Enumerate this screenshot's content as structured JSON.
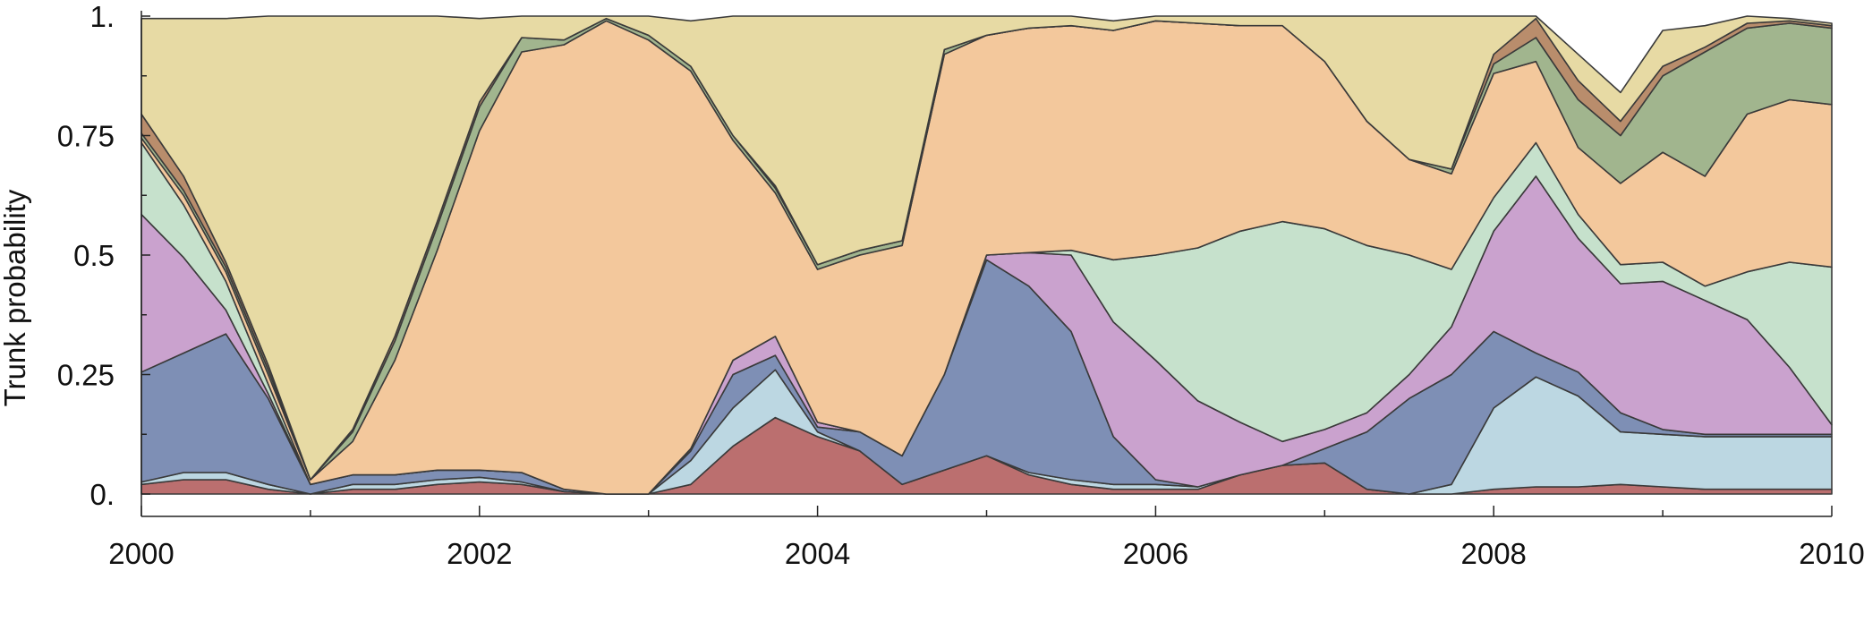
{
  "chart_data": {
    "type": "area",
    "stacked": true,
    "normalized": true,
    "title": "",
    "xlabel": "",
    "ylabel": "Trunk probability",
    "xlim": [
      2000,
      2010
    ],
    "ylim": [
      0,
      1
    ],
    "x_ticks": [
      2000,
      2002,
      2004,
      2006,
      2008,
      2010
    ],
    "x_tick_labels": [
      "2000",
      "2002",
      "2004",
      "2006",
      "2008",
      "2010"
    ],
    "y_ticks": [
      0,
      0.25,
      0.5,
      0.75,
      1
    ],
    "y_tick_labels": [
      "0.",
      "0.25",
      "0.5",
      "0.75",
      "1."
    ],
    "grid": false,
    "legend": "none",
    "x": [
      2000.0,
      2000.25,
      2000.5,
      2000.75,
      2001.0,
      2001.25,
      2001.5,
      2001.75,
      2002.0,
      2002.25,
      2002.5,
      2002.75,
      2003.0,
      2003.25,
      2003.5,
      2003.75,
      2004.0,
      2004.25,
      2004.5,
      2004.75,
      2005.0,
      2005.25,
      2005.5,
      2005.75,
      2006.0,
      2006.25,
      2006.5,
      2006.75,
      2007.0,
      2007.25,
      2007.5,
      2007.75,
      2008.0,
      2008.25,
      2008.5,
      2008.75,
      2009.0,
      2009.25,
      2009.5,
      2009.75,
      2010.0
    ],
    "series": [
      {
        "color": "#bb6f6f",
        "values": [
          0.02,
          0.03,
          0.03,
          0.01,
          0.0,
          0.01,
          0.01,
          0.02,
          0.025,
          0.02,
          0.005,
          0.0,
          0.0,
          0.02,
          0.1,
          0.16,
          0.12,
          0.09,
          0.02,
          0.05,
          0.08,
          0.04,
          0.02,
          0.01,
          0.01,
          0.01,
          0.04,
          0.06,
          0.065,
          0.01,
          0.0,
          0.0,
          0.01,
          0.015,
          0.015,
          0.02,
          0.015,
          0.01,
          0.01,
          0.01,
          0.01
        ]
      },
      {
        "color": "#bcd7e2",
        "values": [
          0.005,
          0.015,
          0.015,
          0.01,
          0.0,
          0.01,
          0.01,
          0.01,
          0.01,
          0.005,
          0.0,
          0.0,
          0.0,
          0.05,
          0.08,
          0.1,
          0.01,
          0.0,
          0.0,
          0.0,
          0.0,
          0.005,
          0.01,
          0.01,
          0.01,
          0.005,
          0.0,
          0.0,
          0.0,
          0.0,
          0.0,
          0.02,
          0.17,
          0.23,
          0.19,
          0.11,
          0.11,
          0.11,
          0.11,
          0.11,
          0.11
        ]
      },
      {
        "color": "#7e8fb5",
        "values": [
          0.23,
          0.25,
          0.29,
          0.18,
          0.02,
          0.02,
          0.02,
          0.02,
          0.015,
          0.02,
          0.005,
          0.0,
          0.0,
          0.02,
          0.07,
          0.03,
          0.01,
          0.04,
          0.06,
          0.2,
          0.41,
          0.39,
          0.31,
          0.1,
          0.01,
          0.0,
          0.0,
          0.0,
          0.03,
          0.12,
          0.2,
          0.23,
          0.16,
          0.05,
          0.05,
          0.04,
          0.01,
          0.005,
          0.005,
          0.005,
          0.005
        ]
      },
      {
        "color": "#caa2ce",
        "values": [
          0.33,
          0.2,
          0.05,
          0.01,
          0.0,
          0.0,
          0.0,
          0.0,
          0.0,
          0.0,
          0.0,
          0.0,
          0.0,
          0.005,
          0.03,
          0.04,
          0.01,
          0.0,
          0.0,
          0.0,
          0.01,
          0.07,
          0.16,
          0.24,
          0.25,
          0.18,
          0.11,
          0.05,
          0.04,
          0.04,
          0.05,
          0.1,
          0.21,
          0.37,
          0.28,
          0.27,
          0.31,
          0.28,
          0.24,
          0.14,
          0.02
        ]
      },
      {
        "color": "#c6e1cc",
        "values": [
          0.15,
          0.11,
          0.06,
          0.02,
          0.0,
          0.0,
          0.0,
          0.0,
          0.0,
          0.0,
          0.0,
          0.0,
          0.0,
          0.0,
          0.0,
          0.0,
          0.0,
          0.0,
          0.0,
          0.0,
          0.0,
          0.0,
          0.01,
          0.13,
          0.22,
          0.32,
          0.4,
          0.46,
          0.42,
          0.35,
          0.25,
          0.12,
          0.07,
          0.07,
          0.05,
          0.04,
          0.04,
          0.03,
          0.1,
          0.22,
          0.33
        ]
      },
      {
        "color": "#f3c89c",
        "values": [
          0.01,
          0.02,
          0.02,
          0.02,
          0.01,
          0.07,
          0.24,
          0.46,
          0.71,
          0.88,
          0.93,
          0.99,
          0.95,
          0.79,
          0.46,
          0.3,
          0.32,
          0.37,
          0.44,
          0.67,
          0.46,
          0.47,
          0.47,
          0.48,
          0.49,
          0.47,
          0.43,
          0.41,
          0.35,
          0.26,
          0.2,
          0.2,
          0.26,
          0.17,
          0.14,
          0.17,
          0.23,
          0.23,
          0.33,
          0.34,
          0.34
        ]
      },
      {
        "color": "#a1b58e",
        "values": [
          0.01,
          0.01,
          0.01,
          0.01,
          0.0,
          0.02,
          0.04,
          0.05,
          0.05,
          0.03,
          0.01,
          0.005,
          0.01,
          0.01,
          0.01,
          0.01,
          0.01,
          0.01,
          0.01,
          0.01,
          0.0,
          0.0,
          0.0,
          0.0,
          0.0,
          0.0,
          0.0,
          0.0,
          0.0,
          0.0,
          0.0,
          0.01,
          0.02,
          0.05,
          0.1,
          0.1,
          0.16,
          0.26,
          0.18,
          0.16,
          0.16
        ]
      },
      {
        "color": "#b98d6c",
        "values": [
          0.04,
          0.03,
          0.01,
          0.01,
          0.0,
          0.005,
          0.01,
          0.01,
          0.01,
          0.0,
          0.0,
          0.0,
          0.0,
          0.0,
          0.0,
          0.005,
          0.0,
          0.0,
          0.0,
          0.0,
          0.0,
          0.0,
          0.0,
          0.0,
          0.0,
          0.0,
          0.0,
          0.0,
          0.0,
          0.0,
          0.0,
          0.0,
          0.02,
          0.04,
          0.04,
          0.03,
          0.02,
          0.01,
          0.01,
          0.005,
          0.005
        ]
      },
      {
        "color": "#e7daa4",
        "values": [
          0.2,
          0.33,
          0.51,
          0.73,
          0.97,
          0.875,
          0.68,
          0.43,
          0.175,
          0.045,
          0.05,
          0.005,
          0.04,
          0.095,
          0.25,
          0.355,
          0.52,
          0.49,
          0.47,
          0.07,
          0.04,
          0.025,
          0.02,
          0.02,
          0.01,
          0.015,
          0.02,
          0.02,
          0.095,
          0.22,
          0.3,
          0.32,
          0.08,
          0.025,
          0.055,
          0.06,
          0.075,
          0.045,
          0.015,
          0.005,
          0.005
        ]
      }
    ]
  }
}
